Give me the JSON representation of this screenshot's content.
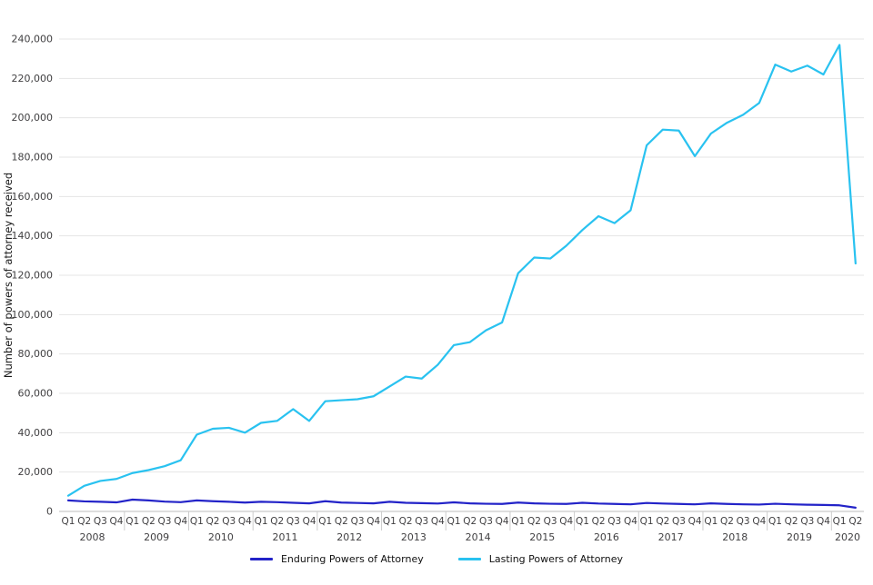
{
  "chart_data": {
    "type": "line",
    "title": "",
    "xlabel": "",
    "ylabel": "Number of powers of attorney received",
    "ylim": [
      0,
      240000
    ],
    "yticks": [
      0,
      20000,
      40000,
      60000,
      80000,
      100000,
      120000,
      140000,
      160000,
      180000,
      200000,
      220000,
      240000
    ],
    "grid": "horizontal",
    "legend_position": "bottom-center",
    "x_groups": [
      {
        "year": "2008",
        "quarters": [
          "Q1",
          "Q2",
          "Q3",
          "Q4"
        ]
      },
      {
        "year": "2009",
        "quarters": [
          "Q1",
          "Q2",
          "Q3",
          "Q4"
        ]
      },
      {
        "year": "2010",
        "quarters": [
          "Q1",
          "Q2",
          "Q3",
          "Q4"
        ]
      },
      {
        "year": "2011",
        "quarters": [
          "Q1",
          "Q2",
          "Q3",
          "Q4"
        ]
      },
      {
        "year": "2012",
        "quarters": [
          "Q1",
          "Q2",
          "Q3",
          "Q4"
        ]
      },
      {
        "year": "2013",
        "quarters": [
          "Q1",
          "Q2",
          "Q3",
          "Q4"
        ]
      },
      {
        "year": "2014",
        "quarters": [
          "Q1",
          "Q2",
          "Q3",
          "Q4"
        ]
      },
      {
        "year": "2015",
        "quarters": [
          "Q1",
          "Q2",
          "Q3",
          "Q4"
        ]
      },
      {
        "year": "2016",
        "quarters": [
          "Q1",
          "Q2",
          "Q3",
          "Q4"
        ]
      },
      {
        "year": "2017",
        "quarters": [
          "Q1",
          "Q2",
          "Q3",
          "Q4"
        ]
      },
      {
        "year": "2018",
        "quarters": [
          "Q1",
          "Q2",
          "Q3",
          "Q4"
        ]
      },
      {
        "year": "2019",
        "quarters": [
          "Q1",
          "Q2",
          "Q3",
          "Q4"
        ]
      },
      {
        "year": "2020",
        "quarters": [
          "Q1",
          "Q2"
        ]
      }
    ],
    "series": [
      {
        "name": "Enduring Powers of Attorney",
        "color": "#2323C8",
        "values": [
          5600,
          5100,
          4900,
          4600,
          6000,
          5600,
          5000,
          4700,
          5600,
          5200,
          4900,
          4500,
          4900,
          4700,
          4400,
          4100,
          5200,
          4500,
          4300,
          4100,
          4900,
          4400,
          4200,
          4000,
          4600,
          4100,
          3900,
          3800,
          4500,
          4100,
          3900,
          3800,
          4400,
          4000,
          3800,
          3600,
          4300,
          4000,
          3800,
          3600,
          4100,
          3800,
          3600,
          3500,
          3900,
          3600,
          3400,
          3300,
          3100,
          1900
        ]
      },
      {
        "name": "Lasting Powers of Attorney",
        "color": "#29C2F0",
        "values": [
          8000,
          13000,
          15500,
          16500,
          19500,
          21000,
          23000,
          26000,
          39000,
          42000,
          42500,
          40000,
          45000,
          46000,
          52000,
          46000,
          56000,
          56500,
          57000,
          58500,
          63500,
          68500,
          67500,
          74500,
          84500,
          86000,
          92000,
          96000,
          121000,
          129000,
          128500,
          135000,
          143000,
          150000,
          146500,
          153000,
          186000,
          194000,
          193500,
          180500,
          192000,
          197500,
          201500,
          207500,
          227000,
          223500,
          226500,
          222000,
          237000,
          126000
        ]
      }
    ]
  }
}
